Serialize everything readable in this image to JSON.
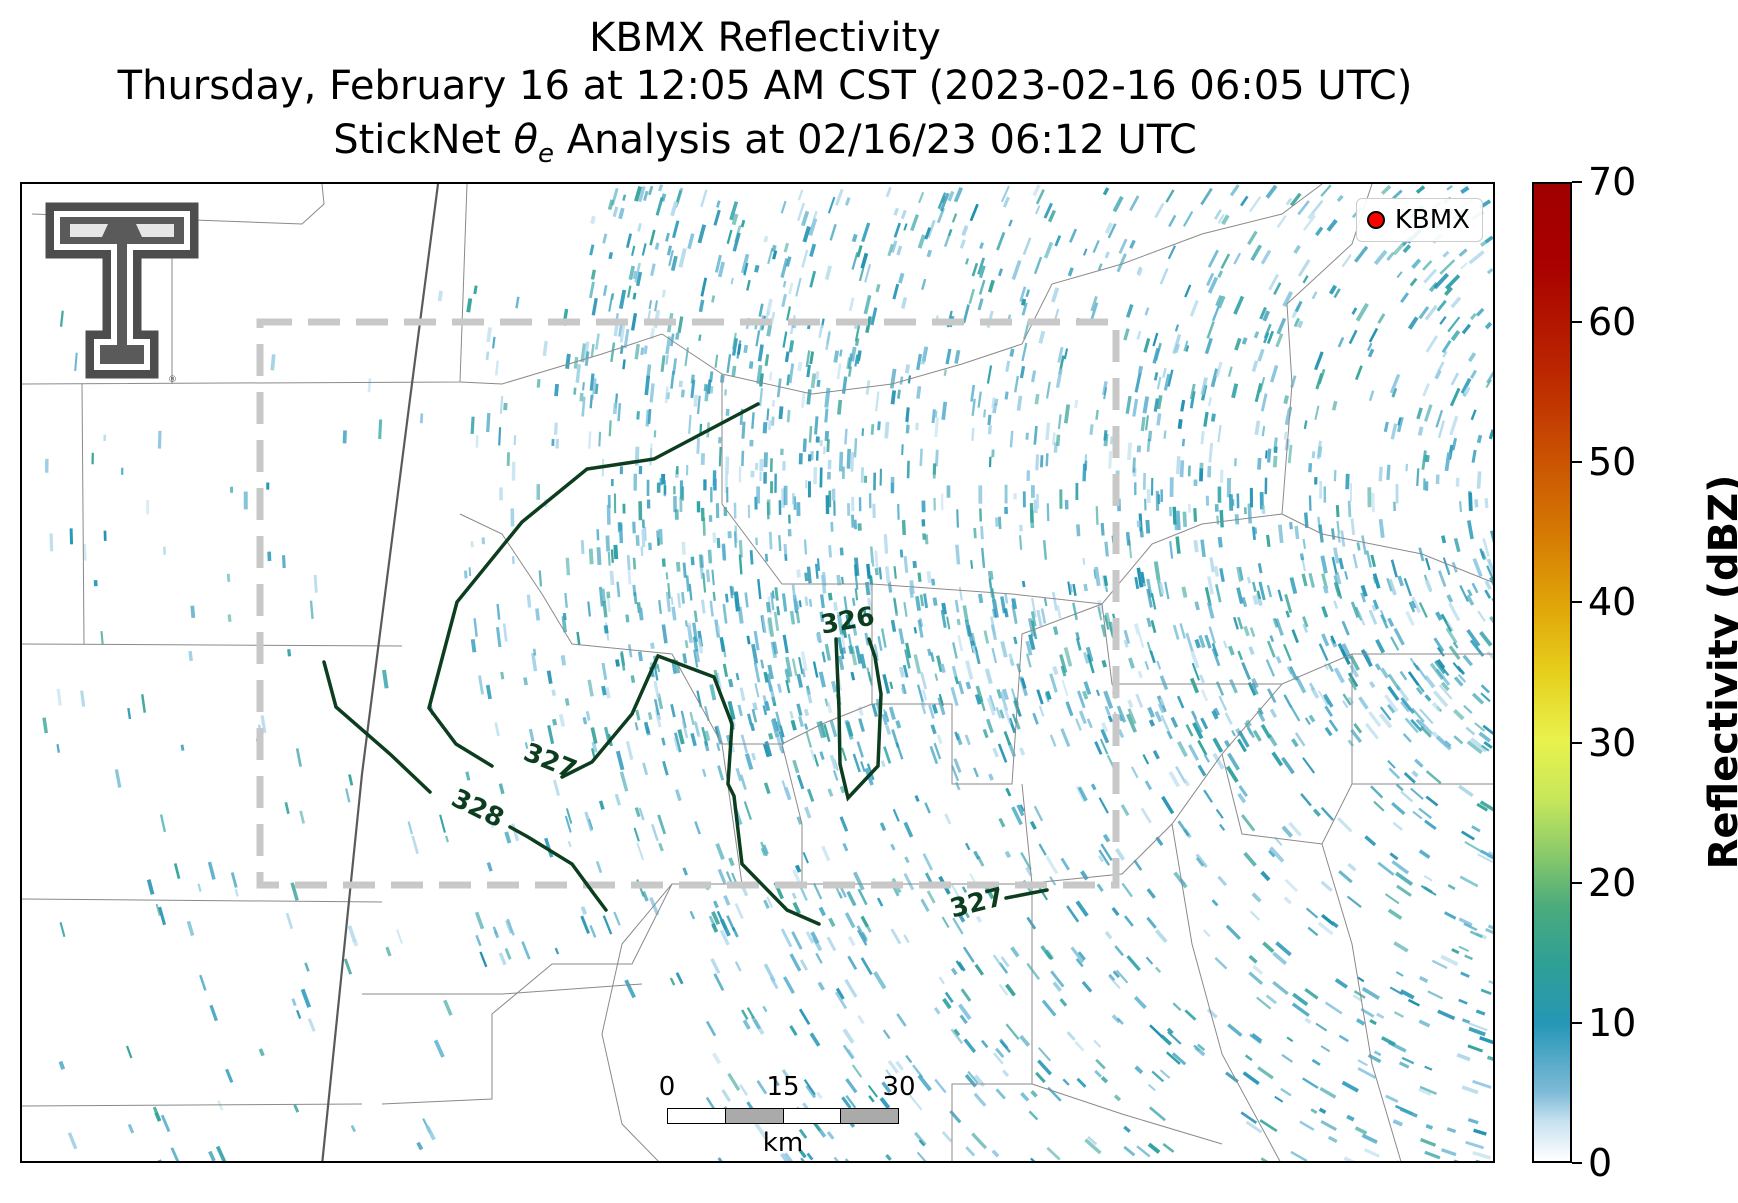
{
  "title": {
    "line1": "KBMX Reflectivity",
    "line2": "Thursday, February 16 at 12:05 AM CST (2023-02-16 06:05 UTC)",
    "line3_prefix": "StickNet ",
    "line3_symbol": "θ",
    "line3_subscript": "e",
    "line3_suffix": " Analysis at 02/16/23 06:12 UTC"
  },
  "legend": {
    "label": "KBMX",
    "marker_color": "#ff0000"
  },
  "contours": [
    {
      "label": "326",
      "value": 326
    },
    {
      "label": "327",
      "value": 327
    },
    {
      "label": "328",
      "value": 328
    },
    {
      "label": "327",
      "value": 327
    }
  ],
  "contour_color": "#0b3d1e",
  "domain_box_color": "#c8c8c8",
  "scalebar": {
    "ticks": [
      "0",
      "15",
      "30"
    ],
    "unit": "km"
  },
  "colorbar": {
    "label": "Reflectivity (dBZ)",
    "min": 0,
    "max": 70,
    "ticks": [
      "0",
      "10",
      "20",
      "30",
      "40",
      "50",
      "60",
      "70"
    ]
  },
  "logo": {
    "name": "texas-tech-double-t-logo"
  }
}
